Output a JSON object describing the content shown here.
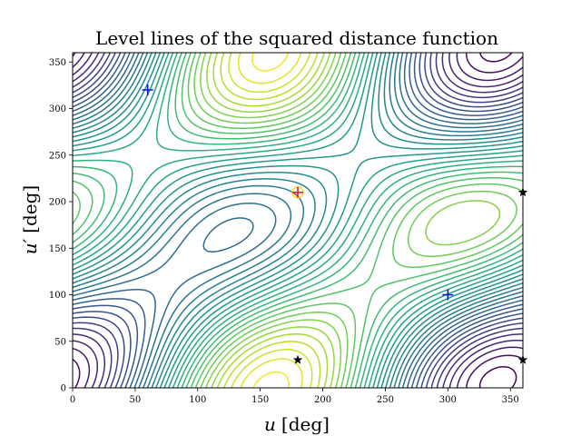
{
  "chart_data": {
    "type": "contour",
    "title": "Level lines of the squared distance function",
    "xlabel_var": "u",
    "xlabel_unit": "[deg]",
    "ylabel_var": "u′",
    "ylabel_unit": "[deg]",
    "xlim": [
      0,
      360
    ],
    "ylim": [
      0,
      360
    ],
    "xticks": [
      0,
      50,
      100,
      150,
      200,
      250,
      300,
      350
    ],
    "yticks": [
      0,
      50,
      100,
      150,
      200,
      250,
      300,
      350
    ],
    "grid": false,
    "colormap": "viridis",
    "maximum_marker": {
      "x": 180,
      "y": 210,
      "color": "#e8141e",
      "circle_color": "#f2e31b"
    },
    "minimum_markers": [
      {
        "x": 60,
        "y": 320,
        "color": "#1010e0"
      },
      {
        "x": 300,
        "y": 100,
        "color": "#1010e0"
      }
    ],
    "saddle_markers": [
      {
        "x": 180,
        "y": 30
      },
      {
        "x": 360,
        "y": 210
      },
      {
        "x": 360,
        "y": 30
      }
    ]
  }
}
